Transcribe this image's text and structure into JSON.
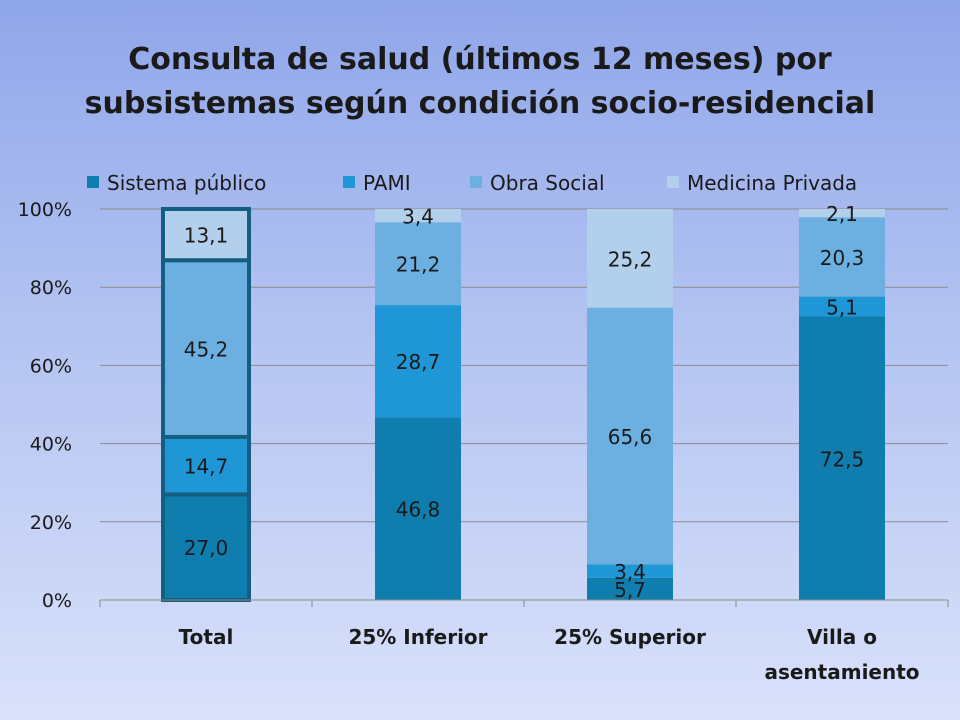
{
  "chart_data": {
    "type": "bar",
    "stacked": true,
    "percent": true,
    "title": [
      "Consulta de salud (últimos 12 meses) por",
      "subsistemas según condición socio-residencial"
    ],
    "categories": [
      [
        "Total"
      ],
      [
        "25% Inferior"
      ],
      [
        "25% Superior"
      ],
      [
        "Villa o",
        "asentamiento"
      ]
    ],
    "series": [
      {
        "name": "Sistema público",
        "color": "#0f7eae",
        "values": [
          27.0,
          46.8,
          5.7,
          72.5
        ],
        "labels": [
          "27,0",
          "46,8",
          "5,7",
          "72,5"
        ]
      },
      {
        "name": "PAMI",
        "color": "#1f97d6",
        "values": [
          14.7,
          28.7,
          3.4,
          5.1
        ],
        "labels": [
          "14,7",
          "28,7",
          "3,4",
          "5,1"
        ]
      },
      {
        "name": "Obra Social",
        "color": "#6cb0e1",
        "values": [
          45.2,
          21.2,
          65.6,
          20.3
        ],
        "labels": [
          "45,2",
          "21,2",
          "65,6",
          "20,3"
        ]
      },
      {
        "name": "Medicina Privada",
        "color": "#b2cfec",
        "values": [
          13.1,
          3.4,
          25.2,
          2.1
        ],
        "labels": [
          "13,1",
          "3,4",
          "25,2",
          "2,1"
        ]
      }
    ],
    "yticks": [
      "0%",
      "20%",
      "40%",
      "60%",
      "80%",
      "100%"
    ],
    "ylim": [
      0,
      100
    ],
    "legend": "top",
    "grid": true,
    "highlighted_category": "Total"
  }
}
